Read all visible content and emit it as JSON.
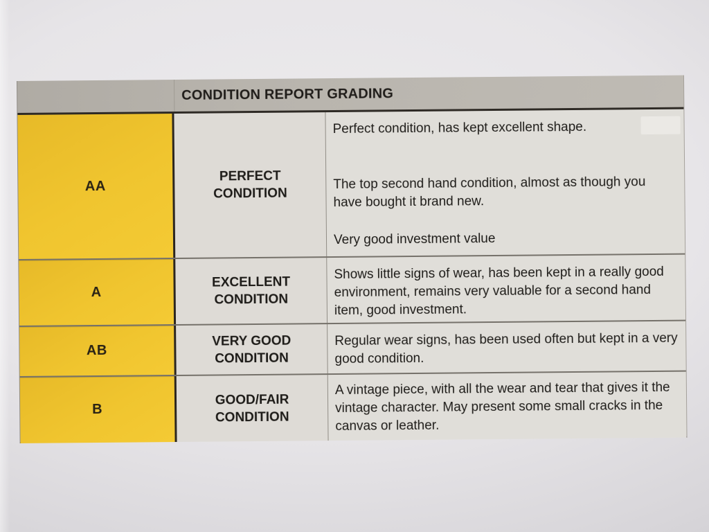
{
  "photo": {
    "paper_center_color": "#edecee",
    "paper_corner_color": "#bfbcc1"
  },
  "table": {
    "title": "CONDITION REPORT GRADING",
    "colors": {
      "header_bg": "#b8b4ad",
      "grade_bg": "#f0c52f",
      "cell_bg": "#dedbd6",
      "border_dark": "#2e2a25",
      "text": "#1e1c19",
      "paper_center": "#edecee",
      "paper_mid": "#e7e5e8",
      "paper_corner": "#bfbcc1"
    },
    "rows": [
      {
        "grade": "AA",
        "name": "PERFECT CONDITION",
        "paragraphs": [
          "Perfect condition, has kept excellent shape.",
          "The top second hand condition, almost as though you have bought it brand new.",
          "Very good investment value"
        ]
      },
      {
        "grade": "A",
        "name": "EXCELLENT CONDITION",
        "paragraphs": [
          "Shows little signs of wear, has been kept in a really good environment, remains very valuable for a second hand item, good investment."
        ]
      },
      {
        "grade": "AB",
        "name": "VERY GOOD CONDITION",
        "paragraphs": [
          "Regular wear signs, has been used often but kept in a very good condition."
        ]
      },
      {
        "grade": "B",
        "name": "GOOD/FAIR CONDITION",
        "paragraphs": [
          "A vintage piece, with all the wear and tear that gives it the vintage character. May present some small cracks in the canvas or leather."
        ]
      }
    ]
  }
}
